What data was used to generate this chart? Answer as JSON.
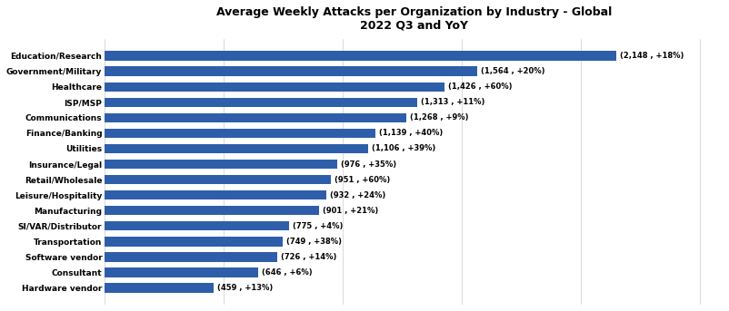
{
  "title_line1": "Average Weekly Attacks per Organization by Industry - Global",
  "title_line2": "2022 Q3 and YoY",
  "categories": [
    "Education/Research",
    "Government/Military",
    "Healthcare",
    "ISP/MSP",
    "Communications",
    "Finance/Banking",
    "Utilities",
    "Insurance/Legal",
    "Retail/Wholesale",
    "Leisure/Hospitality",
    "Manufacturing",
    "SI/VAR/Distributor",
    "Transportation",
    "Software vendor",
    "Consultant",
    "Hardware vendor"
  ],
  "values": [
    2148,
    1564,
    1426,
    1313,
    1268,
    1139,
    1106,
    976,
    951,
    932,
    901,
    775,
    749,
    726,
    646,
    459
  ],
  "yoy": [
    "+18%",
    "+20%",
    "+60%",
    "+11%",
    "+9%",
    "+40%",
    "+39%",
    "+35%",
    "+60%",
    "+24%",
    "+21%",
    "+4%",
    "+38%",
    "+14%",
    "+6%",
    "+13%"
  ],
  "bar_color": "#2E5EAA",
  "background_color": "#ffffff",
  "label_fontsize": 6.5,
  "title_fontsize": 9,
  "bar_label_fontsize": 6
}
